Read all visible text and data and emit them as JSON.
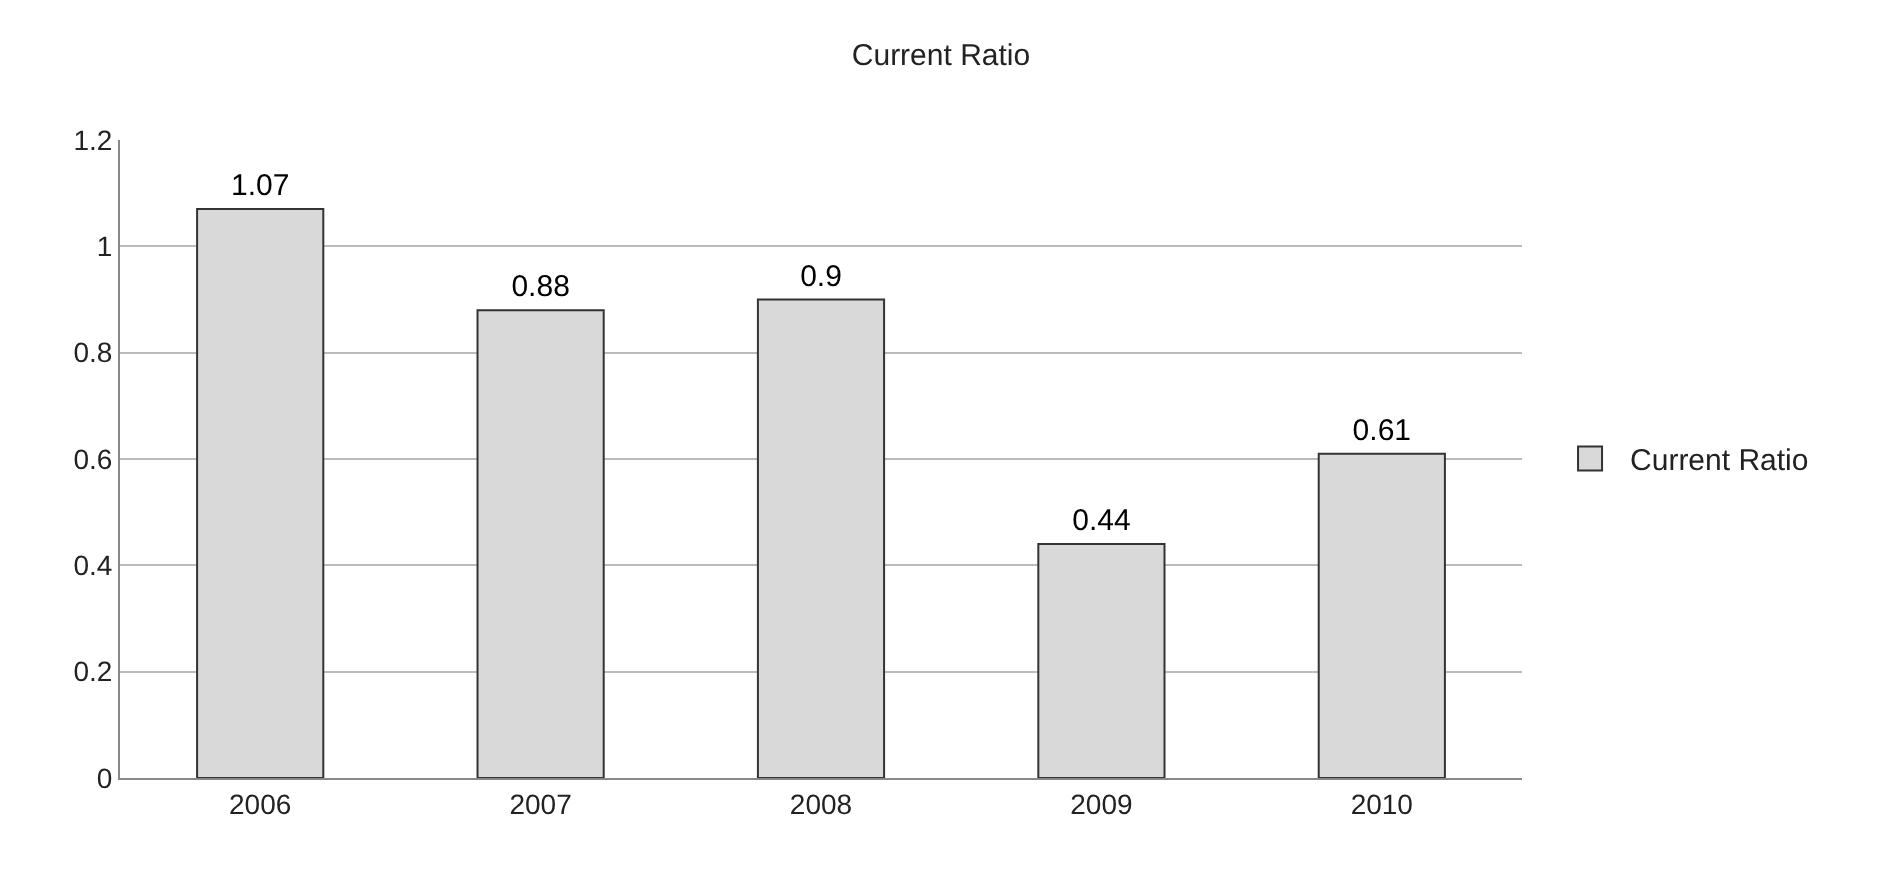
{
  "chart_data": {
    "type": "bar",
    "title": "Current Ratio",
    "categories": [
      "2006",
      "2007",
      "2008",
      "2009",
      "2010"
    ],
    "series": [
      {
        "name": "Current Ratio",
        "color": "#d9d9d9",
        "values": [
          1.07,
          0.88,
          0.9,
          0.44,
          0.61
        ]
      }
    ],
    "ylim": [
      0,
      1.2
    ],
    "yticks": [
      0,
      0.2,
      0.4,
      0.6,
      0.8,
      1,
      1.2
    ],
    "grid": "y",
    "legend": "right",
    "data_labels": true
  }
}
